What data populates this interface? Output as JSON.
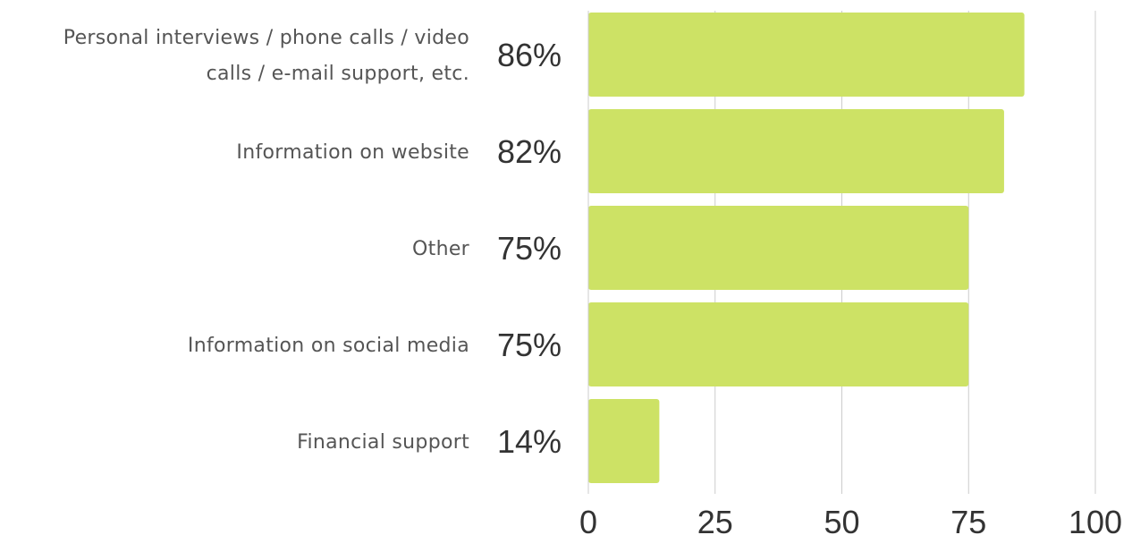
{
  "chart_data": {
    "type": "bar",
    "orientation": "horizontal",
    "categories": [
      [
        "Personal interviews / phone calls / video",
        "calls / e-mail support, etc."
      ],
      [
        "Information on website"
      ],
      [
        "Other"
      ],
      [
        "Information on social media"
      ],
      [
        "Financial support"
      ]
    ],
    "values": [
      86,
      82,
      75,
      75,
      14
    ],
    "value_labels": [
      "86%",
      "82%",
      "75%",
      "75%",
      "14%"
    ],
    "xticks": [
      0,
      25,
      50,
      75,
      100
    ],
    "xlim": [
      0,
      100
    ],
    "grid": true,
    "colors": {
      "bar": "#cde265"
    }
  }
}
